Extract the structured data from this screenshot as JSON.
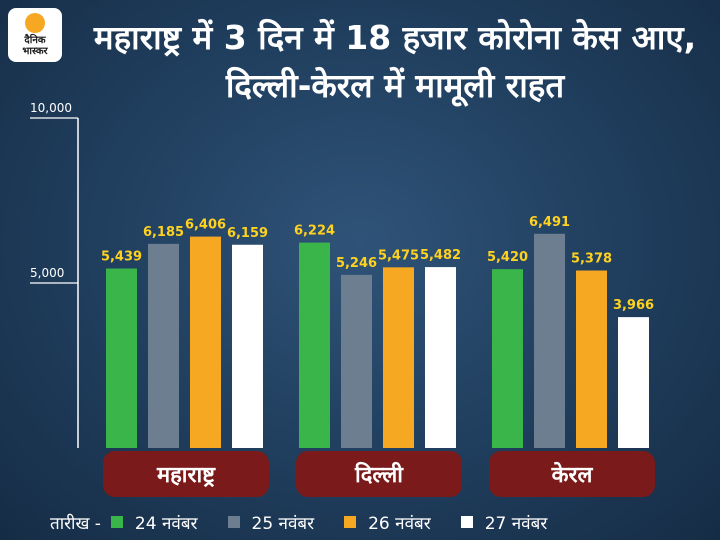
{
  "logo": {
    "line1": "दैनिक",
    "line2": "भास्कर"
  },
  "title": "महाराष्ट्र में 3 दिन में 18 हजार कोरोना केस आए, दिल्ली-केरल में मामूली राहत",
  "legend_lead": "तारीख -",
  "chart_data": {
    "type": "bar",
    "categories": [
      "महाराष्ट्र",
      "दिल्ली",
      "केरल"
    ],
    "series": [
      {
        "name": "24 नवंबर",
        "color": "#3ab54a",
        "values": [
          5439,
          6224,
          5420
        ]
      },
      {
        "name": "25 नवंबर",
        "color": "#6c7e8f",
        "values": [
          6185,
          5246,
          6491
        ]
      },
      {
        "name": "26 नवंबर",
        "color": "#f7a823",
        "values": [
          6406,
          5475,
          5378
        ]
      },
      {
        "name": "27 नवंबर",
        "color": "#ffffff",
        "values": [
          6159,
          5482,
          3966
        ]
      }
    ],
    "value_labels": [
      [
        "5,439",
        "6,185",
        "6,406",
        "6,159"
      ],
      [
        "6,224",
        "5,246",
        "5,475",
        "5,482"
      ],
      [
        "5,420",
        "6,491",
        "5,378",
        "3,966"
      ]
    ],
    "yticks": [
      5000,
      10000
    ],
    "ytick_labels": [
      "5,000",
      "10,000"
    ],
    "ylim": [
      0,
      10000
    ],
    "grid": false,
    "category_label_color": "#7a1a1a",
    "value_label_color": "#ffd21f",
    "legend_position": "bottom"
  }
}
